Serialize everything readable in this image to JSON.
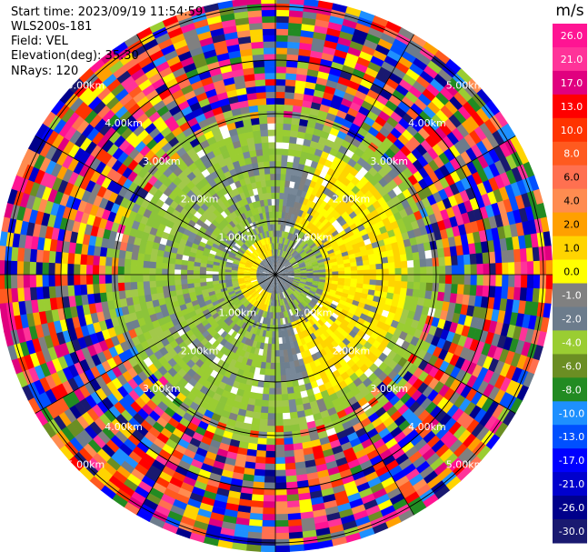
{
  "header": {
    "start_time": "Start time: 2023/09/19 11:54:59",
    "instrument": "WLS200s-181",
    "field": "Field: VEL",
    "elevation": "Elevation(deg): 35.30",
    "nrays": "NRays: 120"
  },
  "chart_data": {
    "type": "heatmap",
    "subtype": "polar-ppi",
    "field": "VEL",
    "rays": 120,
    "range_rings_km": [
      1.0,
      2.0,
      3.0,
      4.0,
      5.0
    ],
    "ring_labels": [
      "1.00km",
      "2.00km",
      "3.00km",
      "4.00km",
      "5.00km"
    ],
    "colorbar": {
      "unit": "m/s",
      "ticks": [
        "26.0",
        "21.0",
        "17.0",
        "13.0",
        "10.0",
        "8.0",
        "6.0",
        "4.0",
        "2.0",
        "1.0",
        "0.0",
        "-1.0",
        "-2.0",
        "-4.0",
        "-6.0",
        "-8.0",
        "-10.0",
        "-13.0",
        "-17.0",
        "-21.0",
        "-26.0",
        "-30.0"
      ],
      "colors": [
        "#ff1493",
        "#ff3399",
        "#e0007f",
        "#ff0000",
        "#ff3300",
        "#ff5a1f",
        "#ff7050",
        "#ff8c50",
        "#ffa000",
        "#ffd400",
        "#ffff00",
        "#808080",
        "#6c7c8c",
        "#9acd32",
        "#6b8e23",
        "#228b22",
        "#1e90ff",
        "#0050ff",
        "#0000ff",
        "#0000cd",
        "#00008b",
        "#191970"
      ],
      "range": [
        -30,
        26
      ]
    },
    "regions": {
      "inner_green_km": [
        0.5,
        2.9
      ],
      "yellow_arc_east_km": [
        1.0,
        2.5
      ],
      "noise_beyond_km": 3.1
    }
  }
}
